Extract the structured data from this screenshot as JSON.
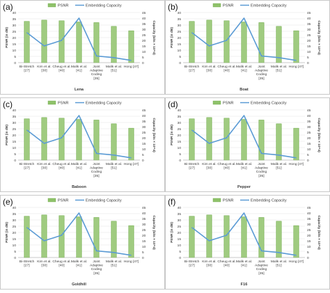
{
  "figure": {
    "colors": {
      "psnr_bar": "#8fc26a",
      "psnr_bar_edge": "#6fa84c",
      "capacity_line": "#5b9bd5",
      "border": "#c8c8c8",
      "grid": "#e2e2e2",
      "text": "#3a3a3a"
    }
  },
  "chart_data": [
    {
      "panel_label": "(a)",
      "type": "bar",
      "title": "Lena",
      "categories": [
        "Bi-Stretch [27]",
        "Kim et al. [30]",
        "Cheug et al. [40]",
        "Malik et al. [41]",
        "Joint Adaptive Coding [35]",
        "Malik et al. [51]",
        "Hong [47]"
      ],
      "legend": [
        "PSNR",
        "Embedding Capacity"
      ],
      "legend_position": "top",
      "ylabel_left": "PSNR (in dB)",
      "ylabel_right": "Capacity (bits × 10^4)",
      "ylim_left": [
        0,
        40
      ],
      "yticks_left": [
        0,
        5,
        10,
        15,
        20,
        25,
        30,
        35,
        40
      ],
      "ylim_right": [
        0,
        45
      ],
      "yticks_right": [
        0,
        5,
        10,
        15,
        20,
        25,
        30,
        35,
        40,
        45
      ],
      "grid": true,
      "series": [
        {
          "name": "PSNR",
          "type": "bar",
          "axis": "left",
          "values": [
            33,
            34,
            33.5,
            32.5,
            32,
            29,
            25.5
          ]
        },
        {
          "name": "Embedding Capacity",
          "type": "line",
          "axis": "right",
          "values": [
            27,
            15,
            20,
            40,
            6,
            4.5,
            2
          ]
        }
      ]
    },
    {
      "panel_label": "(b)",
      "type": "bar",
      "title": "Boat",
      "categories": [
        "Bi-Stretch [27]",
        "Kim et al. [30]",
        "Cheug et al. [40]",
        "Malik et al. [41]",
        "Joint Adaptive Coding [35]",
        "Malik et al. [51]",
        "Hong [47]"
      ],
      "legend": [
        "PSNR",
        "Embedding Capacity"
      ],
      "legend_position": "top",
      "ylabel_left": "PSNR (in dB)",
      "ylabel_right": "Capacity (bits × 10^4)",
      "ylim_left": [
        0,
        40
      ],
      "yticks_left": [
        0,
        5,
        10,
        15,
        20,
        25,
        30,
        35,
        40
      ],
      "ylim_right": [
        0,
        45
      ],
      "yticks_right": [
        0,
        5,
        10,
        15,
        20,
        25,
        30,
        35,
        40,
        45
      ],
      "grid": true,
      "series": [
        {
          "name": "PSNR",
          "type": "bar",
          "axis": "left",
          "values": [
            33,
            34,
            33.5,
            32.5,
            32,
            29,
            25.5
          ]
        },
        {
          "name": "Embedding Capacity",
          "type": "line",
          "axis": "right",
          "values": [
            27,
            15,
            20,
            40,
            6,
            4.5,
            2
          ]
        }
      ]
    },
    {
      "panel_label": "(c)",
      "type": "bar",
      "title": "Baboon",
      "categories": [
        "Bi-Stretch [27]",
        "Kim et al. [30]",
        "Cheug et al. [40]",
        "Malik et al. [41]",
        "Joint Adaptive Coding [35]",
        "Malik et al. [51]",
        "Hong [47]"
      ],
      "legend": [
        "PSNR",
        "Embedding Capacity"
      ],
      "legend_position": "top",
      "ylabel_left": "PSNR (in dB)",
      "ylabel_right": "Capacity (bits × 10^4)",
      "ylim_left": [
        0,
        40
      ],
      "yticks_left": [
        0,
        5,
        10,
        15,
        20,
        25,
        30,
        35,
        40
      ],
      "ylim_right": [
        0,
        45
      ],
      "yticks_right": [
        0,
        5,
        10,
        15,
        20,
        25,
        30,
        35,
        40,
        45
      ],
      "grid": true,
      "series": [
        {
          "name": "PSNR",
          "type": "bar",
          "axis": "left",
          "values": [
            33,
            34,
            33.5,
            32.5,
            32,
            29,
            25.5
          ]
        },
        {
          "name": "Embedding Capacity",
          "type": "line",
          "axis": "right",
          "values": [
            27,
            15,
            20,
            40,
            6,
            4.5,
            2
          ]
        }
      ]
    },
    {
      "panel_label": "(d)",
      "type": "bar",
      "title": "Pepper",
      "categories": [
        "Bi-Stretch [27]",
        "Kim et al. [30]",
        "Cheug et al. [40]",
        "Malik et al. [41]",
        "Joint Adaptive Coding [35]",
        "Malik et al. [51]",
        "Hong [47]"
      ],
      "legend": [
        "PSNR",
        "Embedding Capacity"
      ],
      "legend_position": "top",
      "ylabel_left": "PSNR (in dB)",
      "ylabel_right": "Capacity (bits × 10^4)",
      "ylim_left": [
        0,
        40
      ],
      "yticks_left": [
        0,
        5,
        10,
        15,
        20,
        25,
        30,
        35,
        40
      ],
      "ylim_right": [
        0,
        45
      ],
      "yticks_right": [
        0,
        5,
        10,
        15,
        20,
        25,
        30,
        35,
        40,
        45
      ],
      "grid": true,
      "series": [
        {
          "name": "PSNR",
          "type": "bar",
          "axis": "left",
          "values": [
            33,
            34,
            33.5,
            32.5,
            32,
            29,
            25.5
          ]
        },
        {
          "name": "Embedding Capacity",
          "type": "line",
          "axis": "right",
          "values": [
            27,
            15,
            20,
            40,
            6,
            4.5,
            2
          ]
        }
      ]
    },
    {
      "panel_label": "(e)",
      "type": "bar",
      "title": "Goldhill",
      "categories": [
        "Bi-Stretch [27]",
        "Kim et al. [30]",
        "Cheug et al. [40]",
        "Malik et al. [41]",
        "Joint Adaptive Coding [35]",
        "Malik et al. [51]",
        "Hong [47]"
      ],
      "legend": [
        "PSNR",
        "Embedding Capacity"
      ],
      "legend_position": "top",
      "ylabel_left": "PSNR (in dB)",
      "ylabel_right": "Capacity (bits × 10^4)",
      "ylim_left": [
        0,
        40
      ],
      "yticks_left": [
        0,
        5,
        10,
        15,
        20,
        25,
        30,
        35,
        40
      ],
      "ylim_right": [
        0,
        45
      ],
      "yticks_right": [
        0,
        5,
        10,
        15,
        20,
        25,
        30,
        35,
        40,
        45
      ],
      "grid": true,
      "series": [
        {
          "name": "PSNR",
          "type": "bar",
          "axis": "left",
          "values": [
            33,
            34,
            33.5,
            32.5,
            32,
            29,
            25.5
          ]
        },
        {
          "name": "Embedding Capacity",
          "type": "line",
          "axis": "right",
          "values": [
            27,
            15,
            20,
            40,
            6,
            4.5,
            2
          ]
        }
      ]
    },
    {
      "panel_label": "(f)",
      "type": "bar",
      "title": "F16",
      "categories": [
        "Bi-Stretch [27]",
        "Kim et al. [30]",
        "Cheug et al. [40]",
        "Malik et al. [41]",
        "Joint Adaptive Coding [35]",
        "Malik et al. [51]",
        "Hong [47]"
      ],
      "legend": [
        "PSNR",
        "Embedding Capacity"
      ],
      "legend_position": "top",
      "ylabel_left": "PSNR (in dB)",
      "ylabel_right": "Capacity (bits × 10^4)",
      "ylim_left": [
        0,
        40
      ],
      "yticks_left": [
        0,
        5,
        10,
        15,
        20,
        25,
        30,
        35,
        40
      ],
      "ylim_right": [
        0,
        45
      ],
      "yticks_right": [
        0,
        5,
        10,
        15,
        20,
        25,
        30,
        35,
        40,
        45
      ],
      "grid": true,
      "series": [
        {
          "name": "PSNR",
          "type": "bar",
          "axis": "left",
          "values": [
            33,
            34,
            33.5,
            32.5,
            32,
            29,
            25.5
          ]
        },
        {
          "name": "Embedding Capacity",
          "type": "line",
          "axis": "right",
          "values": [
            27,
            15,
            20,
            40,
            6,
            4.5,
            2
          ]
        }
      ]
    }
  ]
}
